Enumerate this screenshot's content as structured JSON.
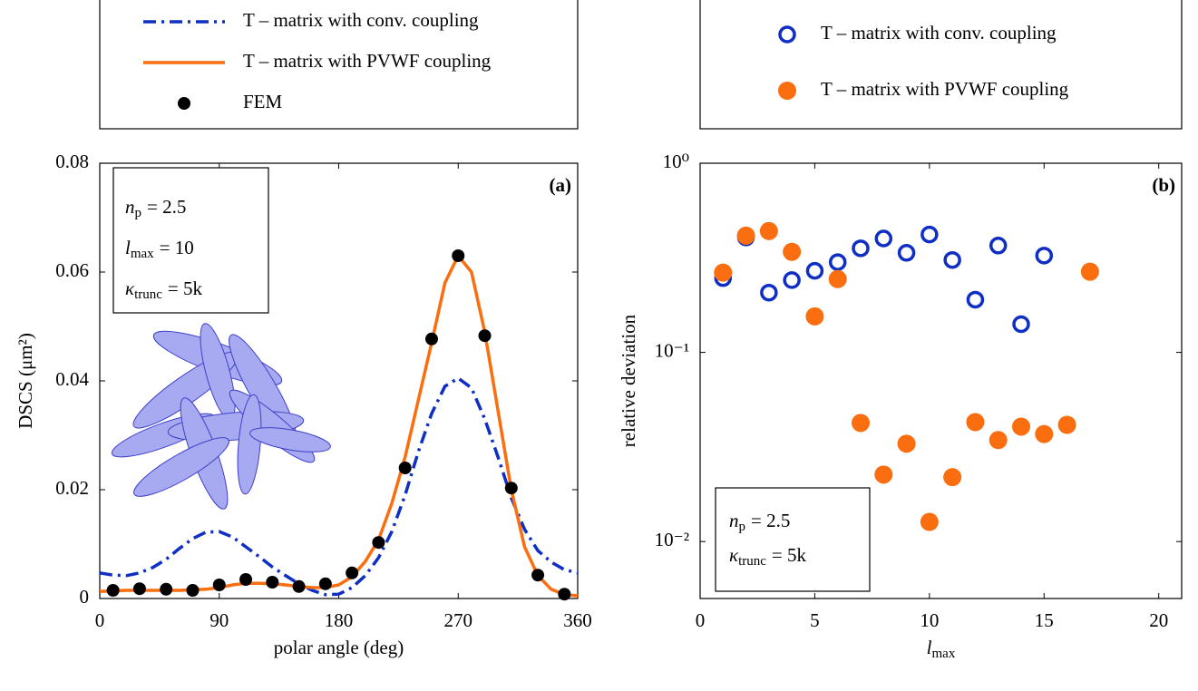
{
  "chart_data": [
    {
      "type": "line",
      "panel_label": "(a)",
      "xlabel": "polar angle (deg)",
      "ylabel": "DSCS (μm²)",
      "xlim": [
        0,
        360
      ],
      "xticks": [
        0,
        90,
        180,
        270,
        360
      ],
      "ylim": [
        0,
        0.08
      ],
      "yticks": [
        0,
        0.02,
        0.04,
        0.06,
        0.08
      ],
      "legend": "top",
      "annotations": [
        {
          "symbol": "n",
          "sub": "p",
          "rest": "= 2.5"
        },
        {
          "symbol": "l",
          "sub": "max",
          "rest": "= 10"
        },
        {
          "symbol": "κ",
          "sub": "trunc",
          "rest": "= 5k"
        }
      ],
      "series": [
        {
          "name": "T – matrix with conv. coupling",
          "color": "#0f2fc4",
          "style": "dashdot",
          "x": [
            0,
            10,
            20,
            30,
            40,
            50,
            60,
            70,
            80,
            90,
            100,
            110,
            120,
            130,
            140,
            150,
            160,
            170,
            180,
            190,
            200,
            210,
            220,
            230,
            240,
            250,
            260,
            270,
            280,
            290,
            300,
            310,
            320,
            330,
            340,
            350,
            360
          ],
          "values": [
            0.0047,
            0.0043,
            0.0042,
            0.0047,
            0.0057,
            0.0072,
            0.0092,
            0.011,
            0.0122,
            0.0123,
            0.0113,
            0.0095,
            0.0077,
            0.0058,
            0.0042,
            0.0027,
            0.0015,
            0.0007,
            0.0008,
            0.002,
            0.0042,
            0.0075,
            0.0123,
            0.019,
            0.027,
            0.034,
            0.039,
            0.0405,
            0.0387,
            0.033,
            0.026,
            0.0185,
            0.0127,
            0.0088,
            0.0067,
            0.0053,
            0.0047
          ]
        },
        {
          "name": "T – matrix with PVWF coupling",
          "color": "#fa6e0f",
          "style": "solid",
          "x": [
            0,
            10,
            20,
            30,
            40,
            50,
            60,
            70,
            80,
            90,
            100,
            110,
            120,
            130,
            140,
            150,
            160,
            170,
            180,
            190,
            200,
            210,
            220,
            230,
            240,
            250,
            260,
            270,
            280,
            290,
            300,
            310,
            320,
            330,
            340,
            350,
            360
          ],
          "values": [
            0.0013,
            0.0014,
            0.0015,
            0.0015,
            0.0015,
            0.0015,
            0.0015,
            0.0016,
            0.0017,
            0.002,
            0.0025,
            0.0028,
            0.0028,
            0.0027,
            0.0025,
            0.0022,
            0.002,
            0.002,
            0.0025,
            0.004,
            0.0068,
            0.0108,
            0.0175,
            0.026,
            0.0365,
            0.047,
            0.058,
            0.063,
            0.06,
            0.049,
            0.0345,
            0.02,
            0.0095,
            0.0042,
            0.0017,
            0.0007,
            0.0005
          ]
        },
        {
          "name": "FEM",
          "color": "#000000",
          "style": "markers",
          "x": [
            10,
            30,
            50,
            70,
            90,
            110,
            130,
            150,
            170,
            190,
            210,
            230,
            250,
            270,
            290,
            310,
            330,
            350
          ],
          "values": [
            0.0015,
            0.0018,
            0.0017,
            0.0015,
            0.0025,
            0.0035,
            0.003,
            0.0022,
            0.0027,
            0.0047,
            0.0103,
            0.024,
            0.0477,
            0.063,
            0.0483,
            0.0203,
            0.0043,
            0.0008
          ]
        }
      ]
    },
    {
      "type": "scatter",
      "panel_label": "(b)",
      "xlabel": {
        "symbol": "l",
        "sub": "max"
      },
      "ylabel": "relative deviation",
      "xlim": [
        0,
        21
      ],
      "xticks": [
        0,
        5,
        10,
        15,
        20
      ],
      "ylim": [
        0.005,
        1
      ],
      "yscale": "log",
      "yticks": [
        {
          "value": 0.01,
          "label": "10⁻²"
        },
        {
          "value": 0.1,
          "label": "10⁻¹"
        },
        {
          "value": 1,
          "label": "10⁰"
        }
      ],
      "legend": "top",
      "annotations": [
        {
          "symbol": "n",
          "sub": "p",
          "rest": "= 2.5"
        },
        {
          "symbol": "κ",
          "sub": "trunc",
          "rest": "= 5k"
        }
      ],
      "series": [
        {
          "name": "T – matrix with conv. coupling",
          "color": "#0f2fc4",
          "style": "open-circle",
          "x": [
            1,
            2,
            3,
            4,
            5,
            6,
            7,
            8,
            9,
            10,
            11,
            12,
            13,
            14,
            15
          ],
          "values": [
            0.247,
            0.405,
            0.207,
            0.241,
            0.27,
            0.3,
            0.355,
            0.4,
            0.336,
            0.42,
            0.308,
            0.19,
            0.367,
            0.141,
            0.325
          ]
        },
        {
          "name": "T – matrix with PVWF coupling",
          "color": "#fa6e0f",
          "style": "filled-circle",
          "x": [
            1,
            2,
            3,
            4,
            5,
            6,
            7,
            8,
            9,
            10,
            11,
            12,
            13,
            14,
            15,
            16,
            17
          ],
          "values": [
            0.264,
            0.414,
            0.438,
            0.34,
            0.155,
            0.244,
            0.0424,
            0.0226,
            0.0329,
            0.0127,
            0.0219,
            0.0428,
            0.0344,
            0.0405,
            0.037,
            0.0414,
            0.267
          ]
        }
      ]
    }
  ]
}
